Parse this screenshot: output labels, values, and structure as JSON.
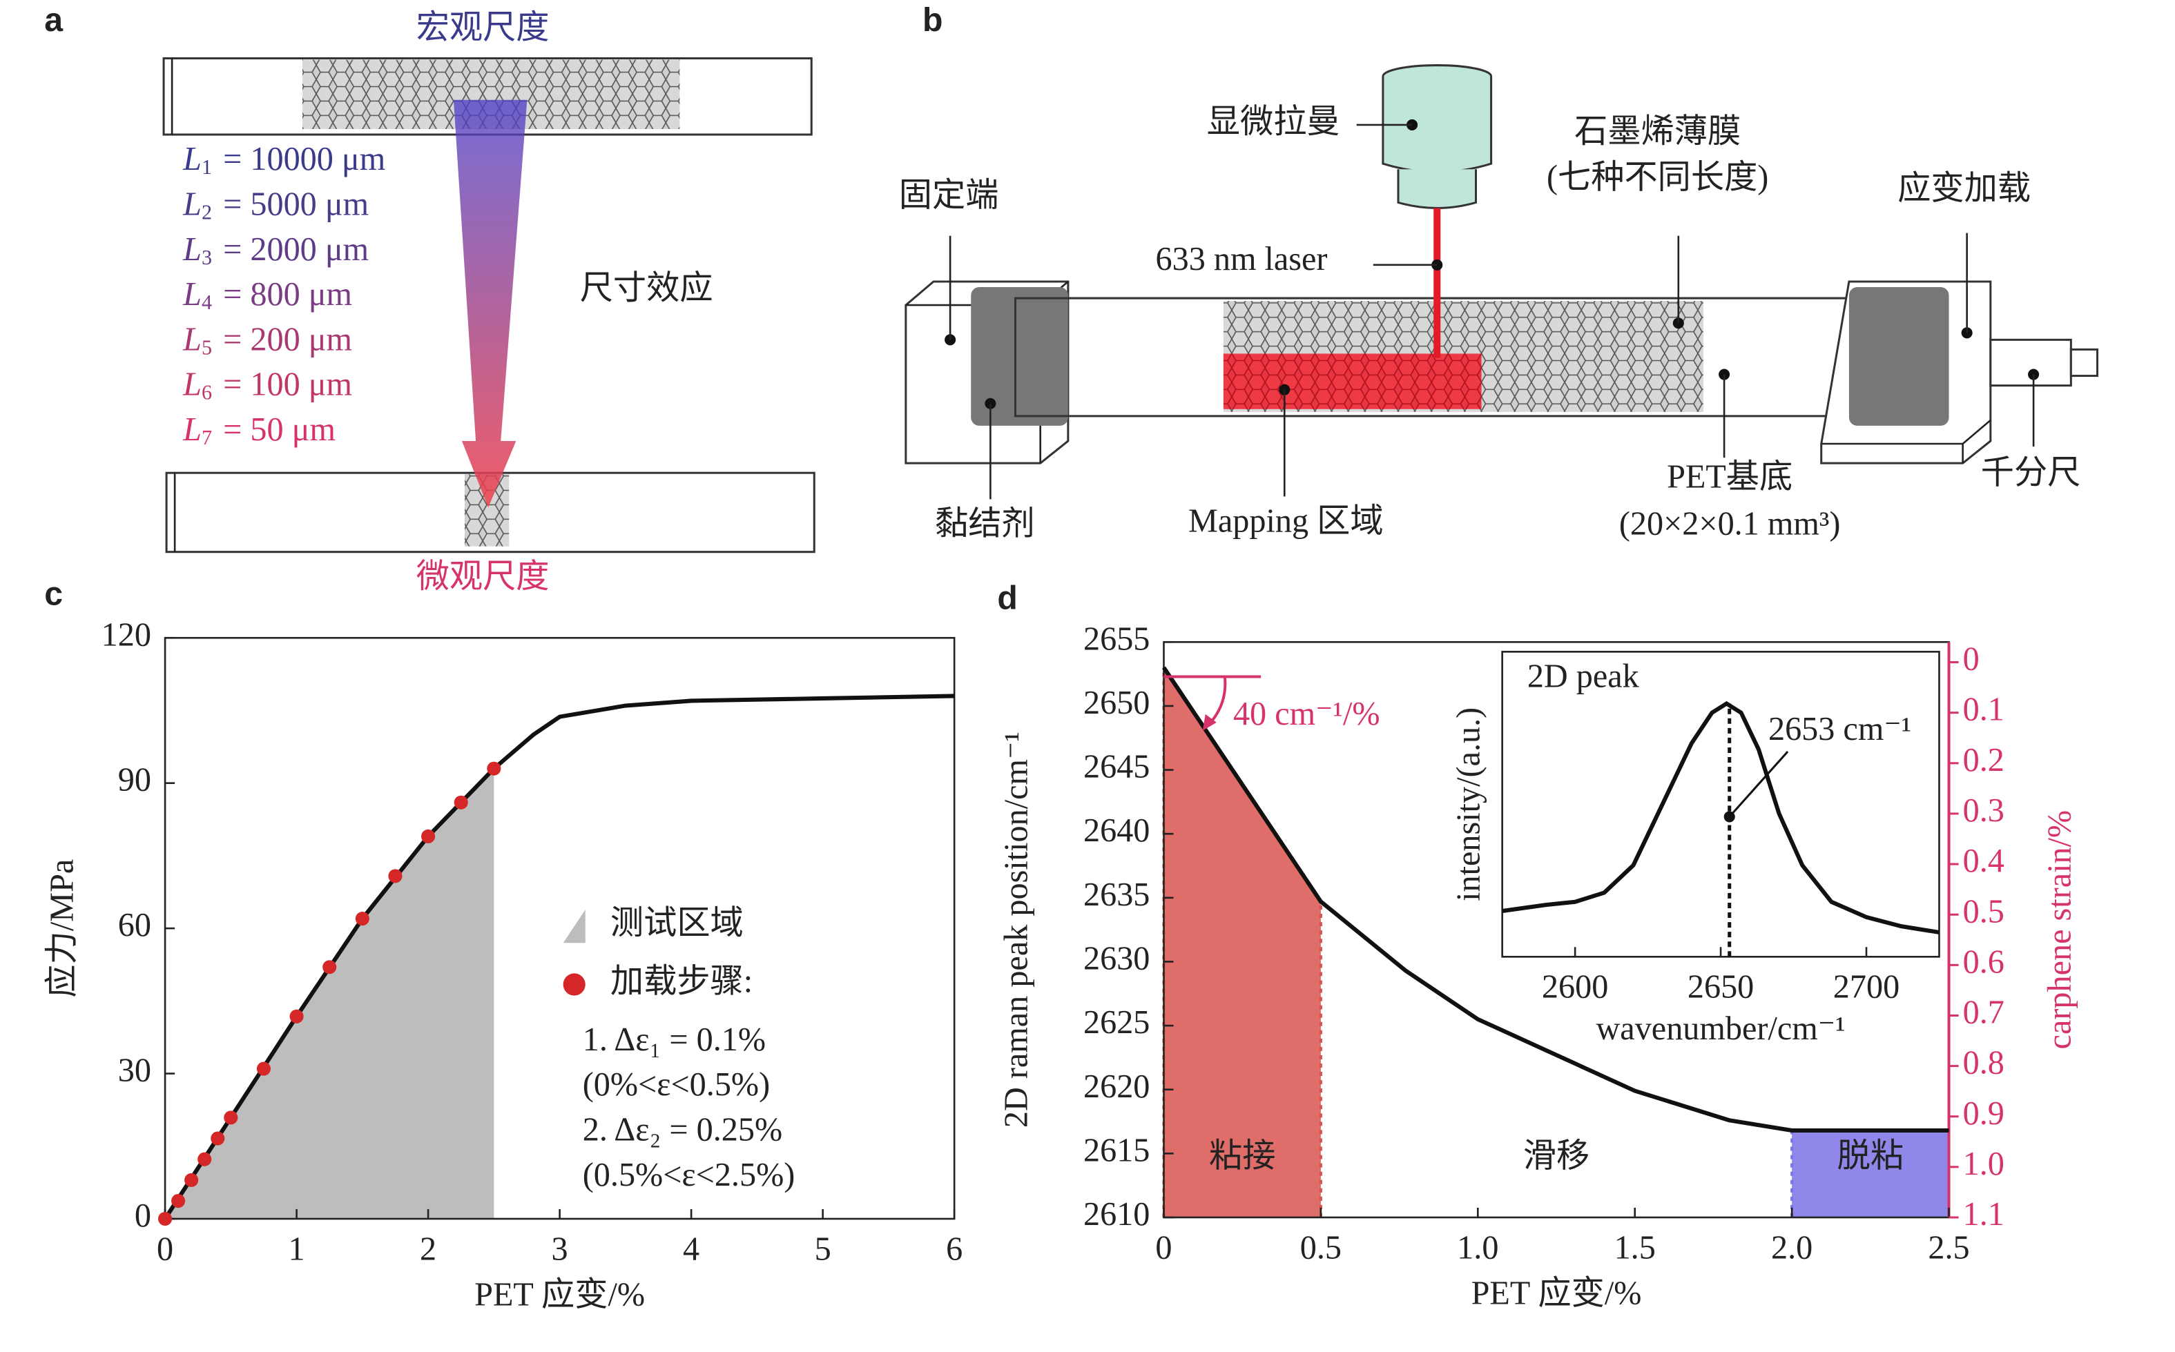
{
  "panel_a": {
    "panel": "a",
    "top": "宏观尺度",
    "bottom": "微观尺度",
    "effect": "尺寸效应",
    "lengths": [
      {
        "symbol": "L",
        "sub": "1",
        "rest": "= 10000 μm",
        "color": "#3a3a8c"
      },
      {
        "symbol": "L",
        "sub": "2",
        "rest": "= 5000 μm",
        "color": "#4b3a8a"
      },
      {
        "symbol": "L",
        "sub": "3",
        "rest": "= 2000 μm",
        "color": "#5f3a88"
      },
      {
        "symbol": "L",
        "sub": "4",
        "rest": "= 800 μm",
        "color": "#7a3a84"
      },
      {
        "symbol": "L",
        "sub": "5",
        "rest": "= 200 μm",
        "color": "#a8386f"
      },
      {
        "symbol": "L",
        "sub": "6",
        "rest": "= 100 μm",
        "color": "#c23666"
      },
      {
        "symbol": "L",
        "sub": "7",
        "rest": "= 50 μm",
        "color": "#d6336c"
      }
    ]
  },
  "panel_b": {
    "panel": "b",
    "raman": "显微拉曼",
    "film": "石墨烯薄膜",
    "film_note": "(七种不同长度)",
    "fixed": "固定端",
    "loading": "应变加载",
    "laser": "633 nm laser",
    "adhesive": "黏结剂",
    "mapping": "Mapping 区域",
    "substrate": "PET基底",
    "substrate_size": "(20×2×0.1 mm³)",
    "micrometer": "千分尺"
  },
  "chart_data": [
    {
      "type": "line",
      "panel": "c",
      "xlabel": "PET 应变/%",
      "ylabel": "应力/MPa",
      "xlim": [
        0,
        6
      ],
      "xticks": [
        0,
        1,
        2,
        3,
        4,
        5,
        6
      ],
      "ylim": [
        0,
        120
      ],
      "yticks": [
        0,
        30,
        60,
        90,
        120
      ],
      "legend": true,
      "regions": [
        {
          "name": "测试区域",
          "x": [
            0,
            2.5
          ],
          "color": "#bdbdbd"
        }
      ],
      "series": [
        {
          "style": "line",
          "color": "#111111",
          "x": [
            0,
            0.5,
            1,
            1.5,
            2,
            2.5,
            2.8,
            3,
            3.5,
            4,
            5,
            6
          ],
          "values": [
            0,
            20.9,
            41.8,
            62,
            79,
            93,
            100,
            103.7,
            106,
            107,
            107.5,
            108
          ]
        },
        {
          "name": "加载步骤:",
          "style": "points",
          "color": "#d62728",
          "x": [
            0,
            0.1,
            0.2,
            0.3,
            0.4,
            0.5,
            0.75,
            1,
            1.25,
            1.5,
            1.75,
            2,
            2.25,
            2.5
          ],
          "values": [
            0,
            3.7,
            8,
            12.3,
            16.6,
            20.9,
            31,
            41.8,
            52,
            62,
            70.8,
            79,
            86,
            93
          ]
        }
      ],
      "legend_notes": [
        "1. Δε₁ = 0.1%",
        "(0%<ε<0.5%)",
        "2. Δε₂ = 0.25%",
        "(0.5%<ε<2.5%)"
      ]
    },
    {
      "type": "line",
      "panel": "d",
      "xlabel": "PET 应变/%",
      "ylabel": "2D raman peak position/cm⁻¹",
      "y2label": "carphene strain/%",
      "y2color": "#d6336c",
      "xlim": [
        0,
        2.5
      ],
      "xticks": [
        0,
        0.5,
        {
          "value": 1,
          "label": "1.0"
        },
        1.5,
        {
          "value": 2,
          "label": "2.0"
        },
        2.5
      ],
      "ylim": [
        2610,
        2655
      ],
      "yticks": [
        2610,
        2615,
        2620,
        2625,
        2630,
        2635,
        2640,
        2645,
        2650,
        2655
      ],
      "y2lim": [
        1.1,
        -0.04
      ],
      "y2ticks": [
        0,
        0.1,
        0.2,
        0.3,
        0.4,
        0.5,
        0.6,
        0.7,
        0.8,
        0.9,
        {
          "value": 1,
          "label": "1.0"
        },
        1.1
      ],
      "legend": false,
      "regions": [
        {
          "name": "粘接",
          "x": [
            0,
            0.5
          ],
          "color": "#d9534f"
        },
        {
          "name": "滑移",
          "x": [
            0.5,
            2
          ]
        },
        {
          "name": "脱粘",
          "x": [
            2,
            2.5
          ],
          "color": "#7b72e6"
        }
      ],
      "series": [
        {
          "style": "line",
          "color": "#111111",
          "x": [
            0,
            0.5,
            0.77,
            1,
            1.5,
            1.8,
            2,
            2.5
          ],
          "values": [
            2653,
            2634.7,
            2629.3,
            2625.5,
            2619.9,
            2617.6,
            2616.8,
            2616.8
          ]
        }
      ],
      "slope_label": "40 cm⁻¹/%"
    },
    {
      "type": "line",
      "title": "2D peak",
      "xlabel": "wavenumber/cm⁻¹",
      "ylabel": "intensity/(a.u.)",
      "xlim": [
        2575,
        2725
      ],
      "xticks": [
        2600,
        2650,
        2700
      ],
      "ylim": [
        0,
        1
      ],
      "legend": false,
      "series": [
        {
          "style": "line",
          "color": "#111111",
          "x": [
            2575,
            2590,
            2600,
            2610,
            2620,
            2630,
            2640,
            2647,
            2652,
            2657,
            2663,
            2670,
            2678,
            2688,
            2700,
            2712,
            2725
          ],
          "values": [
            0.15,
            0.17,
            0.18,
            0.21,
            0.3,
            0.5,
            0.7,
            0.8,
            0.83,
            0.8,
            0.68,
            0.47,
            0.3,
            0.18,
            0.13,
            0.1,
            0.08
          ]
        }
      ],
      "peak_x": 2653,
      "peak_label": "2653 cm⁻¹"
    }
  ]
}
